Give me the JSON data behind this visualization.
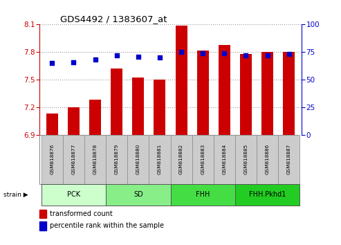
{
  "title": "GDS4492 / 1383607_at",
  "samples": [
    "GSM818876",
    "GSM818877",
    "GSM818878",
    "GSM818879",
    "GSM818880",
    "GSM818881",
    "GSM818882",
    "GSM818883",
    "GSM818884",
    "GSM818885",
    "GSM818886",
    "GSM818887"
  ],
  "transformed_count": [
    7.13,
    7.2,
    7.28,
    7.62,
    7.52,
    7.5,
    8.09,
    7.82,
    7.88,
    7.78,
    7.8,
    7.8
  ],
  "percentile_rank": [
    65,
    66,
    68,
    72,
    71,
    70,
    75,
    74,
    74,
    72,
    72,
    73
  ],
  "bar_color": "#cc0000",
  "dot_color": "#0000cc",
  "ylim_left": [
    6.9,
    8.1
  ],
  "ylim_right": [
    0,
    100
  ],
  "yticks_left": [
    6.9,
    7.2,
    7.5,
    7.8,
    8.1
  ],
  "yticks_right": [
    0,
    25,
    50,
    75,
    100
  ],
  "groups": [
    {
      "label": "PCK",
      "start": 0,
      "end": 2,
      "color": "#ccffcc"
    },
    {
      "label": "SD",
      "start": 3,
      "end": 5,
      "color": "#88ee88"
    },
    {
      "label": "FHH",
      "start": 6,
      "end": 8,
      "color": "#44dd44"
    },
    {
      "label": "FHH.Pkhd1",
      "start": 9,
      "end": 11,
      "color": "#22cc22"
    }
  ],
  "left_axis_color": "#cc0000",
  "right_axis_color": "#0000cc",
  "grid_color": "#999999",
  "tick_area_color": "#cccccc",
  "legend_labels": [
    "transformed count",
    "percentile rank within the sample"
  ],
  "legend_colors": [
    "#cc0000",
    "#0000cc"
  ]
}
